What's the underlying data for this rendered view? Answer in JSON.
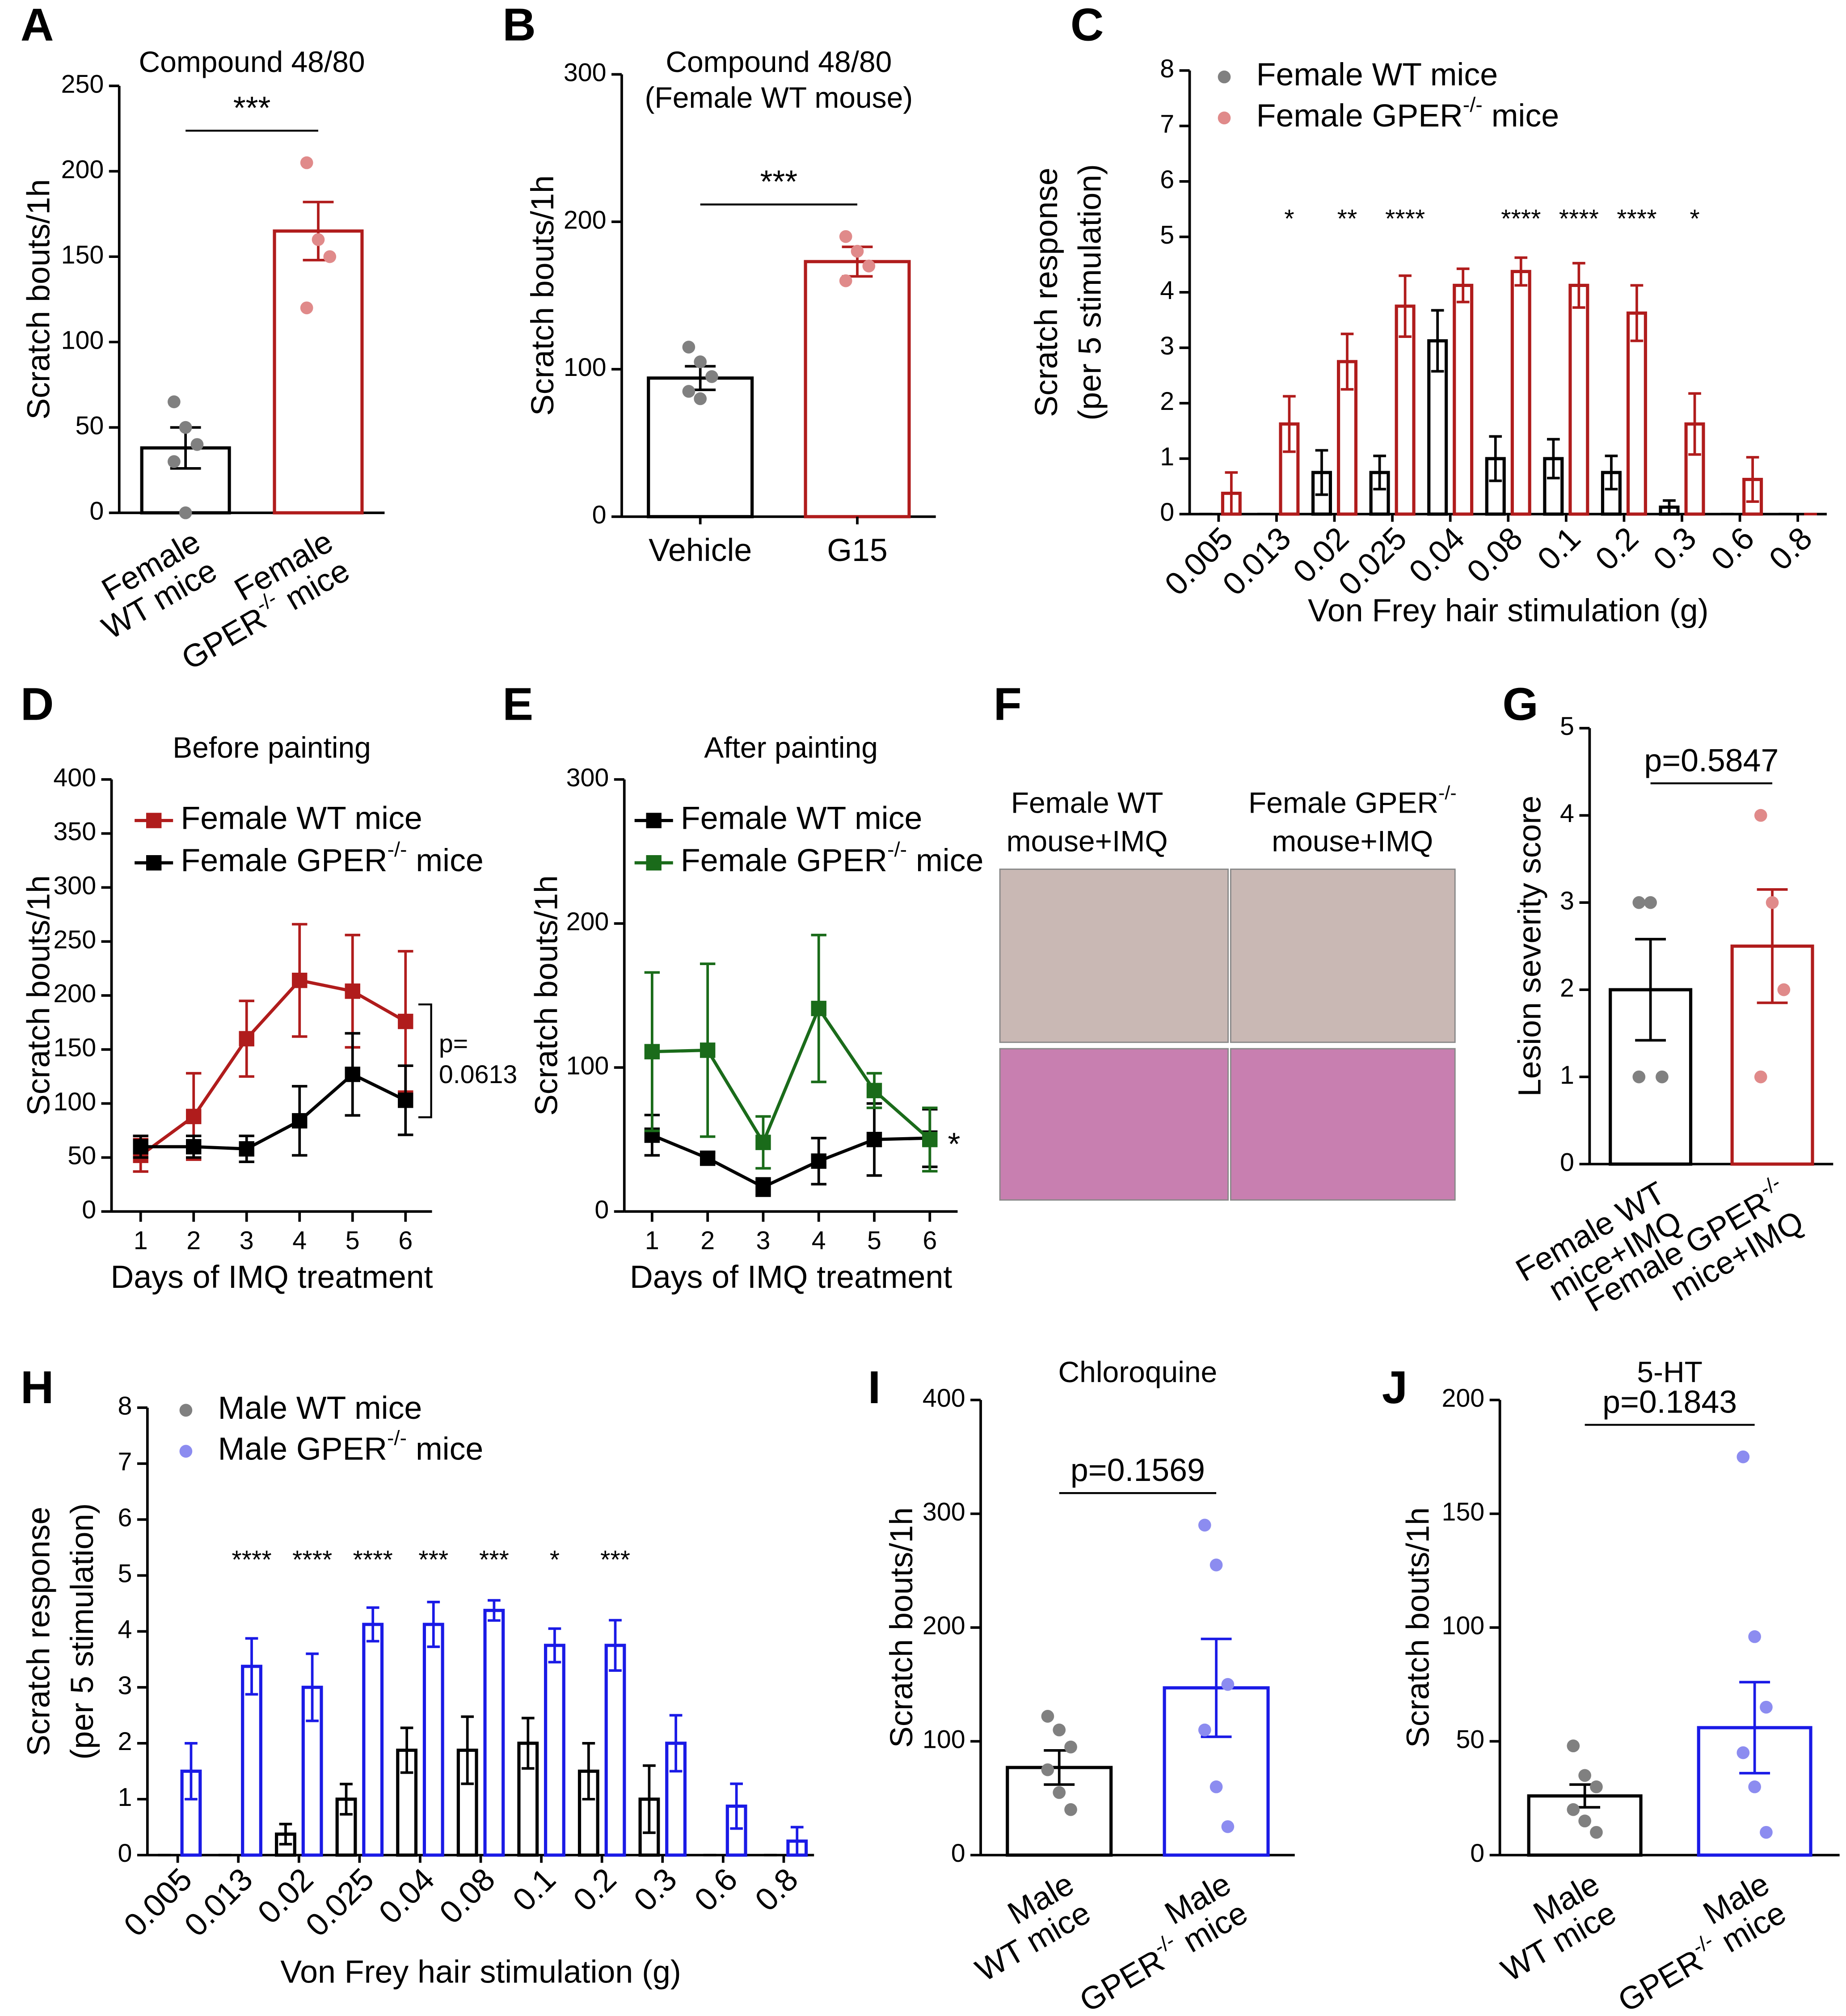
{
  "chart_data": [
    {
      "panel": "A",
      "type": "bar",
      "title": [
        "Compound 48/80"
      ],
      "ylabel": [
        "Scratch bouts/1h"
      ],
      "categories": [
        [
          "Female",
          "WT mice"
        ],
        [
          "Female",
          "GPER-/- mice"
        ]
      ],
      "values": [
        38,
        165
      ],
      "errors": [
        12,
        17
      ],
      "colors": [
        "#000000",
        "#b01c1c"
      ],
      "point_colors": [
        "#808080",
        "#e08a8a"
      ],
      "points": [
        [
          65,
          50,
          40,
          30,
          0
        ],
        [
          205,
          160,
          150,
          120
        ]
      ],
      "ylim": [
        0,
        250
      ],
      "yticks": [
        0,
        50,
        100,
        150,
        200,
        250
      ],
      "significance": "***"
    },
    {
      "panel": "B",
      "type": "bar",
      "title": [
        "Compound 48/80",
        "(Female WT mouse)"
      ],
      "ylabel": [
        "Scratch bouts/1h"
      ],
      "categories": [
        [
          "Vehicle"
        ],
        [
          "G15"
        ]
      ],
      "values": [
        94,
        173
      ],
      "errors": [
        8,
        10
      ],
      "colors": [
        "#000000",
        "#b01c1c"
      ],
      "point_colors": [
        "#808080",
        "#e08a8a"
      ],
      "points": [
        [
          115,
          105,
          95,
          85,
          80
        ],
        [
          190,
          180,
          170,
          160
        ]
      ],
      "ylim": [
        0,
        300
      ],
      "yticks": [
        0,
        100,
        200,
        300
      ],
      "significance": "***"
    },
    {
      "panel": "C",
      "type": "bar",
      "ylabel": [
        "Scratch response",
        "(per 5 stimulation)"
      ],
      "xlabel": "Von Frey hair stimulation (g)",
      "categories": [
        "0.005",
        "0.013",
        "0.02",
        "0.025",
        "0.04",
        "0.08",
        "0.1",
        "0.2",
        "0.3",
        "0.6",
        "0.8"
      ],
      "series": [
        {
          "name": "Female WT mice",
          "color": "#000000",
          "marker_color": "#808080",
          "values": [
            0,
            0,
            0.75,
            0.75,
            3.125,
            1,
            1,
            0.75,
            0.125,
            0,
            0
          ],
          "errors": [
            0,
            0,
            0.4,
            0.3,
            0.55,
            0.4,
            0.35,
            0.3,
            0.12,
            0,
            0
          ]
        },
        {
          "name": "Female GPER-/- mice",
          "color": "#b01c1c",
          "marker_color": "#e08a8a",
          "values": [
            0.375,
            1.625,
            2.75,
            3.75,
            4.125,
            4.375,
            4.125,
            3.625,
            1.625,
            0.625,
            0
          ],
          "errors": [
            0.375,
            0.5,
            0.5,
            0.55,
            0.3,
            0.25,
            0.4,
            0.5,
            0.55,
            0.4,
            0
          ]
        }
      ],
      "significance": [
        null,
        "*",
        "**",
        "****",
        null,
        "****",
        "****",
        "****",
        "*",
        null,
        null
      ],
      "ylim": [
        0,
        8
      ],
      "yticks": [
        0,
        1,
        2,
        3,
        4,
        5,
        6,
        7,
        8
      ]
    },
    {
      "panel": "D",
      "type": "line",
      "title": [
        "Before painting"
      ],
      "ylabel": [
        "Scratch bouts/1h"
      ],
      "xlabel": "Days of IMQ treatment",
      "x": [
        1,
        2,
        3,
        4,
        5,
        6
      ],
      "xlim": [
        0.45,
        6.5
      ],
      "xticks": [
        1,
        2,
        3,
        4,
        5,
        6
      ],
      "series": [
        {
          "name": "Female WT mice",
          "color": "#b01c1c",
          "values": [
            52,
            88,
            160,
            214,
            204,
            176
          ],
          "errors": [
            15,
            40,
            35,
            52,
            52,
            65
          ]
        },
        {
          "name": "Female GPER-/- mice",
          "color": "#000000",
          "values": [
            60,
            60,
            58,
            84,
            127,
            103
          ],
          "errors": [
            10,
            10,
            12,
            32,
            38,
            32
          ]
        }
      ],
      "ylim": [
        0,
        400
      ],
      "yticks": [
        0,
        50,
        100,
        150,
        200,
        250,
        300,
        350,
        400
      ],
      "annotation": [
        "p=",
        "0.0613"
      ],
      "bracket": true
    },
    {
      "panel": "E",
      "type": "line",
      "title": [
        "After painting"
      ],
      "ylabel": [
        "Scratch bouts/1h"
      ],
      "xlabel": "Days of IMQ treatment",
      "x": [
        1,
        2,
        3,
        4,
        5,
        6
      ],
      "xlim": [
        0.5,
        6.5
      ],
      "xticks": [
        1,
        2,
        3,
        4,
        5,
        6
      ],
      "series": [
        {
          "name": "Female WT mice",
          "color": "#000000",
          "values": [
            53,
            37,
            17,
            35,
            50,
            51
          ],
          "errors": [
            14,
            4,
            6,
            16,
            25,
            20
          ]
        },
        {
          "name": "Female GPER-/- mice",
          "color": "#1a6b1a",
          "values": [
            111,
            112,
            48,
            141,
            84,
            50
          ],
          "errors": [
            55,
            60,
            18,
            51,
            12,
            22
          ]
        }
      ],
      "ylim": [
        0,
        300
      ],
      "yticks": [
        0,
        100,
        200,
        300
      ],
      "annotation": [
        "*"
      ],
      "bracket": false
    },
    {
      "panel": "F",
      "type": "image",
      "labels": [
        [
          "Female WT",
          "mouse+IMQ"
        ],
        [
          "Female GPER-/-",
          "mouse+IMQ"
        ]
      ]
    },
    {
      "panel": "G",
      "type": "bar",
      "ylabel": [
        "Lesion severity score"
      ],
      "categories": [
        [
          "Female WT",
          "mice+IMQ"
        ],
        [
          "Female GPER-/-",
          "mice+IMQ"
        ]
      ],
      "values": [
        2,
        2.5
      ],
      "errors": [
        0.58,
        0.65
      ],
      "colors": [
        "#000000",
        "#b01c1c"
      ],
      "point_colors": [
        "#808080",
        "#e08a8a"
      ],
      "points": [
        [
          3,
          3,
          1,
          1
        ],
        [
          4,
          3,
          2,
          1
        ]
      ],
      "ylim": [
        0,
        5
      ],
      "yticks": [
        0,
        1,
        2,
        3,
        4,
        5
      ],
      "significance": "p=0.5847"
    },
    {
      "panel": "H",
      "type": "bar",
      "ylabel": [
        "Scratch response",
        "(per 5 stimulation)"
      ],
      "xlabel": "Von Frey hair stimulation (g)",
      "categories": [
        "0.005",
        "0.013",
        "0.02",
        "0.025",
        "0.04",
        "0.08",
        "0.1",
        "0.2",
        "0.3",
        "0.6",
        "0.8"
      ],
      "series": [
        {
          "name": "Male WT mice",
          "color": "#000000",
          "marker_color": "#808080",
          "values": [
            0,
            0,
            0.375,
            1,
            1.875,
            1.875,
            2,
            1.5,
            1,
            0,
            0
          ],
          "errors": [
            0,
            0,
            0.18,
            0.27,
            0.4,
            0.6,
            0.45,
            0.5,
            0.6,
            0,
            0
          ]
        },
        {
          "name": "Male GPER-/- mice",
          "color": "#1a1ae6",
          "marker_color": "#8c8cf0",
          "values": [
            1.5,
            3.375,
            3,
            4.125,
            4.125,
            4.375,
            3.75,
            3.75,
            2,
            0.875,
            0.25
          ],
          "errors": [
            0.5,
            0.5,
            0.6,
            0.3,
            0.4,
            0.18,
            0.3,
            0.45,
            0.5,
            0.4,
            0.25
          ]
        }
      ],
      "significance": [
        null,
        "****",
        "****",
        "****",
        "***",
        "***",
        "*",
        "***",
        null,
        null,
        null
      ],
      "ylim": [
        0,
        8
      ],
      "yticks": [
        0,
        1,
        2,
        3,
        4,
        5,
        6,
        7,
        8
      ]
    },
    {
      "panel": "I",
      "type": "bar",
      "title": [
        "Chloroquine"
      ],
      "ylabel": [
        "Scratch bouts/1h"
      ],
      "categories": [
        [
          "Male",
          "WT mice"
        ],
        [
          "Male",
          "GPER-/- mice"
        ]
      ],
      "values": [
        77,
        147
      ],
      "errors": [
        15,
        43
      ],
      "colors": [
        "#000000",
        "#1a1ae6"
      ],
      "point_colors": [
        "#808080",
        "#8c8cf0"
      ],
      "points": [
        [
          122,
          110,
          95,
          75,
          55,
          40
        ],
        [
          290,
          255,
          150,
          110,
          60,
          25
        ]
      ],
      "ylim": [
        0,
        400
      ],
      "yticks": [
        0,
        100,
        200,
        300,
        400
      ],
      "significance": "p=0.1569"
    },
    {
      "panel": "J",
      "type": "bar",
      "title": [
        "5-HT"
      ],
      "ylabel": [
        "Scratch bouts/1h"
      ],
      "categories": [
        [
          "Male",
          "WT mice"
        ],
        [
          "Male",
          "GPER-/- mice"
        ]
      ],
      "values": [
        26,
        56
      ],
      "errors": [
        5,
        20
      ],
      "colors": [
        "#000000",
        "#1a1ae6"
      ],
      "point_colors": [
        "#808080",
        "#8c8cf0"
      ],
      "points": [
        [
          48,
          35,
          30,
          20,
          15,
          10
        ],
        [
          175,
          96,
          65,
          45,
          30,
          10
        ]
      ],
      "ylim": [
        0,
        200
      ],
      "yticks": [
        0,
        50,
        100,
        150,
        200
      ],
      "significance": "p=0.1843"
    }
  ]
}
